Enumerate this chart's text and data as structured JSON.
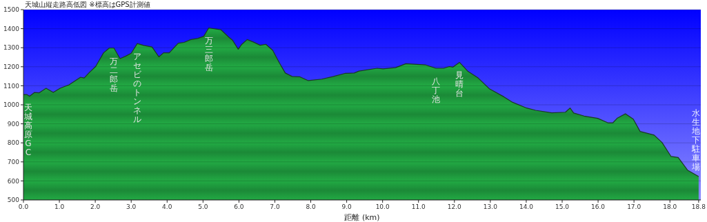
{
  "chart_data": {
    "type": "area",
    "title": "天城山縦走路高低図 ※標高はGPS計測値",
    "xlabel": "距離 (km)",
    "xlim": [
      0,
      18.86
    ],
    "ylim": [
      500,
      1500
    ],
    "xticks": [
      {
        "value": 0,
        "label": "0.0"
      },
      {
        "value": 1,
        "label": "1.0"
      },
      {
        "value": 2,
        "label": "2.0"
      },
      {
        "value": 3,
        "label": "3.0"
      },
      {
        "value": 4,
        "label": "4.0"
      },
      {
        "value": 5,
        "label": "5.0"
      },
      {
        "value": 6,
        "label": "6.0"
      },
      {
        "value": 7,
        "label": "7.0"
      },
      {
        "value": 8,
        "label": "8.0"
      },
      {
        "value": 9,
        "label": "9.0"
      },
      {
        "value": 10,
        "label": "10.0"
      },
      {
        "value": 11,
        "label": "11.0"
      },
      {
        "value": 12,
        "label": "12.0"
      },
      {
        "value": 13,
        "label": "13.0"
      },
      {
        "value": 14,
        "label": "14.0"
      },
      {
        "value": 15,
        "label": "15.0"
      },
      {
        "value": 16,
        "label": "16.0"
      },
      {
        "value": 17,
        "label": "17.0"
      },
      {
        "value": 18,
        "label": "18.0"
      },
      {
        "value": 18.8,
        "label": "18.8"
      }
    ],
    "yticks": [
      500,
      600,
      700,
      800,
      900,
      1000,
      1100,
      1200,
      1300,
      1400,
      1500
    ],
    "grid": "y",
    "series": [
      {
        "color": "#22aa44",
        "x": [
          0,
          0.09,
          0.17,
          0.31,
          0.44,
          0.63,
          0.83,
          1.02,
          1.27,
          1.59,
          1.69,
          1.82,
          2.01,
          2.23,
          2.39,
          2.52,
          2.69,
          2.84,
          3.0,
          3.17,
          3.35,
          3.58,
          3.77,
          3.9,
          4.06,
          4.31,
          4.47,
          4.66,
          4.86,
          5.02,
          5.16,
          5.37,
          5.5,
          5.72,
          5.82,
          5.98,
          6.07,
          6.23,
          6.39,
          6.59,
          6.75,
          6.94,
          7.13,
          7.29,
          7.48,
          7.7,
          7.93,
          8.31,
          8.63,
          8.95,
          9.21,
          9.34,
          9.85,
          10.01,
          10.36,
          10.65,
          11.19,
          11.48,
          11.7,
          11.86,
          11.96,
          12.14,
          12.37,
          12.66,
          12.98,
          13.37,
          13.62,
          14.01,
          14.26,
          14.71,
          15.09,
          15.22,
          15.32,
          15.61,
          15.99,
          16.28,
          16.41,
          16.53,
          16.76,
          16.98,
          17.17,
          17.56,
          17.78,
          18.03,
          18.23,
          18.49,
          18.8
        ],
        "values": [
          1054,
          1054,
          1045,
          1065,
          1063,
          1087,
          1065,
          1087,
          1105,
          1145,
          1141,
          1167,
          1201,
          1273,
          1298,
          1298,
          1243,
          1255,
          1271,
          1322,
          1312,
          1304,
          1252,
          1273,
          1273,
          1324,
          1328,
          1343,
          1349,
          1360,
          1404,
          1398,
          1394,
          1355,
          1340,
          1292,
          1316,
          1343,
          1331,
          1313,
          1318,
          1286,
          1219,
          1167,
          1149,
          1147,
          1127,
          1135,
          1149,
          1165,
          1167,
          1177,
          1192,
          1189,
          1195,
          1216,
          1210,
          1192,
          1192,
          1201,
          1198,
          1223,
          1177,
          1141,
          1083,
          1043,
          1013,
          983,
          971,
          958,
          961,
          983,
          957,
          941,
          929,
          905,
          905,
          929,
          953,
          925,
          860,
          841,
          802,
          729,
          723,
          657,
          623
        ]
      }
    ],
    "annotations": [
      {
        "text": "天城高原GC",
        "x": 0,
        "y": 1054
      },
      {
        "text": "万二郎岳",
        "x": 2.52,
        "y": 1298
      },
      {
        "text": "アセビのトンネル",
        "x": 3.17,
        "y": 1322
      },
      {
        "text": "万三郎岳",
        "x": 5.16,
        "y": 1404
      },
      {
        "text": "八丁池",
        "x": 11.48,
        "y": 1192
      },
      {
        "text": "見晴台",
        "x": 12.14,
        "y": 1223
      },
      {
        "text": "水生地下駐車場",
        "x": 18.8,
        "y": 623
      }
    ]
  }
}
